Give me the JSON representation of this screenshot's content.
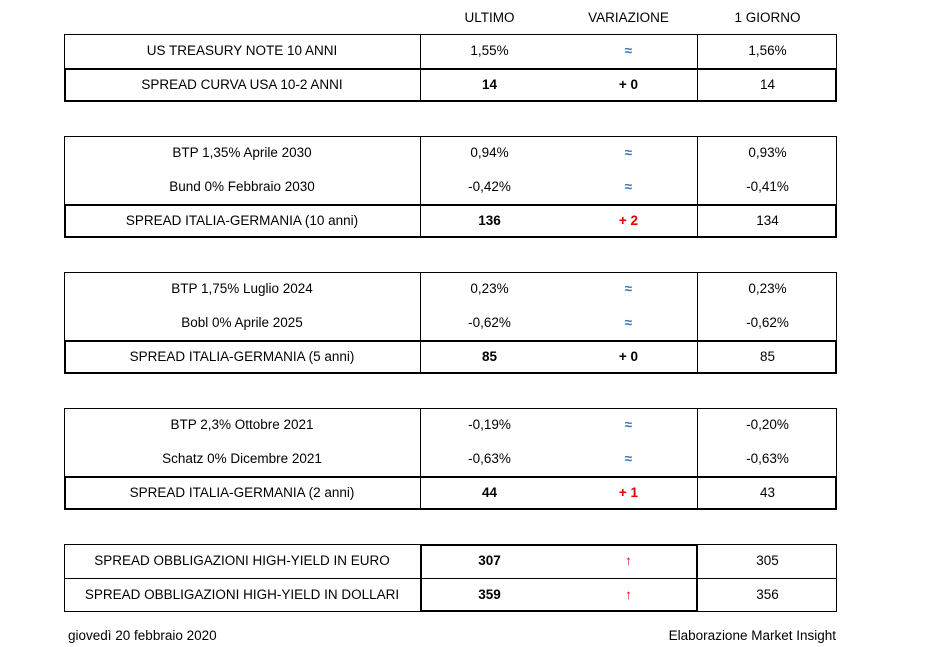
{
  "headers": {
    "ultimo": "ULTIMO",
    "variazione": "VARIAZIONE",
    "giorno": "1 GIORNO"
  },
  "groups": [
    {
      "rows": [
        {
          "name": "US TREASURY NOTE 10 ANNI",
          "ultimo": "1,55%",
          "var": "≈",
          "giorno": "1,56%"
        },
        {
          "name": "SPREAD CURVA USA 10-2 ANNI",
          "ultimo": "14",
          "var": "+ 0",
          "giorno": "14"
        }
      ]
    },
    {
      "rows": [
        {
          "name": "BTP 1,35% Aprile 2030",
          "ultimo": "0,94%",
          "var": "≈",
          "giorno": "0,93%"
        },
        {
          "name": "Bund 0% Febbraio 2030",
          "ultimo": "-0,42%",
          "var": "≈",
          "giorno": "-0,41%"
        },
        {
          "name": "SPREAD ITALIA-GERMANIA (10 anni)",
          "ultimo": "136",
          "var": "+ 2",
          "giorno": "134"
        }
      ]
    },
    {
      "rows": [
        {
          "name": "BTP 1,75% Luglio 2024",
          "ultimo": "0,23%",
          "var": "≈",
          "giorno": "0,23%"
        },
        {
          "name": "Bobl 0% Aprile 2025",
          "ultimo": "-0,62%",
          "var": "≈",
          "giorno": "-0,62%"
        },
        {
          "name": "SPREAD ITALIA-GERMANIA (5 anni)",
          "ultimo": "85",
          "var": "+ 0",
          "giorno": "85"
        }
      ]
    },
    {
      "rows": [
        {
          "name": "BTP 2,3% Ottobre 2021",
          "ultimo": "-0,19%",
          "var": "≈",
          "giorno": "-0,20%"
        },
        {
          "name": "Schatz 0% Dicembre 2021",
          "ultimo": "-0,63%",
          "var": "≈",
          "giorno": "-0,63%"
        },
        {
          "name": "SPREAD ITALIA-GERMANIA (2 anni)",
          "ultimo": "44",
          "var": "+ 1",
          "giorno": "43"
        }
      ]
    },
    {
      "rows": [
        {
          "name": "SPREAD OBBLIGAZIONI HIGH-YIELD IN EURO",
          "ultimo": "307",
          "var": "↑",
          "giorno": "305"
        },
        {
          "name": "SPREAD OBBLIGAZIONI HIGH-YIELD IN DOLLARI",
          "ultimo": "359",
          "var": "↑",
          "giorno": "356"
        }
      ]
    }
  ],
  "footer": {
    "date": "giovedì 20 febbraio 2020",
    "source": "Elaborazione Market Insight"
  },
  "colors": {
    "red": "#e00000",
    "blue": "#2e75b6"
  }
}
